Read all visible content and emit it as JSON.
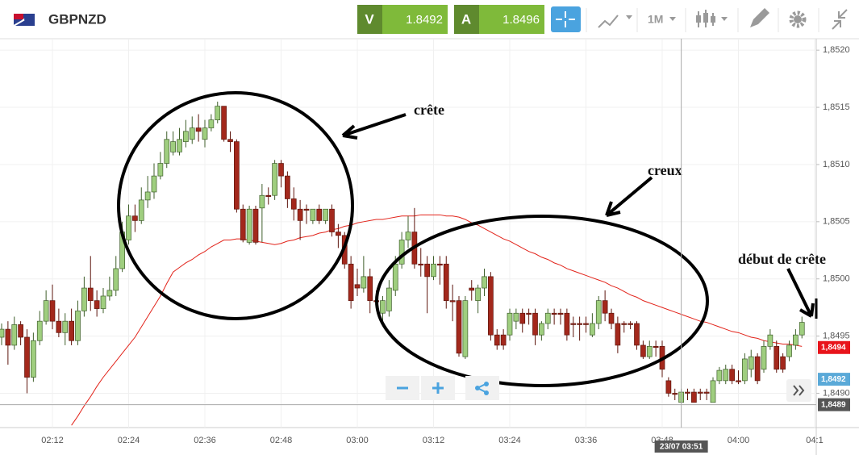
{
  "header": {
    "symbol": "GBPNZD",
    "bid": {
      "label": "V",
      "value": 1.8492
    },
    "ask": {
      "label": "A",
      "value": 1.8496
    },
    "timeframe": "1M"
  },
  "chart_data": {
    "type": "candlestick",
    "categories": [
      null,
      null,
      null,
      null,
      null,
      null,
      null,
      null,
      "02:12",
      null,
      null,
      null,
      null,
      null,
      null,
      null,
      null,
      null,
      null,
      null,
      "02:24",
      null,
      null,
      null,
      null,
      null,
      null,
      null,
      null,
      null,
      null,
      null,
      "02:36",
      null,
      null,
      null,
      null,
      null,
      null,
      null,
      null,
      null,
      null,
      null,
      "02:48",
      null,
      null,
      null,
      null,
      null,
      null,
      null,
      null,
      null,
      null,
      null,
      "03:00",
      null,
      null,
      null,
      null,
      null,
      null,
      null,
      null,
      null,
      null,
      null,
      "03:12",
      null,
      null,
      null,
      null,
      null,
      null,
      null,
      null,
      null,
      null,
      null,
      "03:24",
      null,
      null,
      null,
      null,
      null,
      null,
      null,
      null,
      null,
      null,
      null,
      "03:36",
      null,
      null,
      null,
      null,
      null,
      null,
      null,
      null,
      null,
      null,
      null,
      "03:48",
      null,
      null,
      null,
      null,
      null,
      null,
      null,
      null,
      null,
      null,
      null,
      "04:00",
      null,
      null,
      null,
      null,
      null,
      null,
      null,
      null,
      null,
      null,
      null,
      "04:1"
    ],
    "open": [
      1.84949,
      1.84956,
      1.84942,
      1.8496,
      1.84949,
      1.84914,
      1.84946,
      1.84963,
      1.84981,
      1.84963,
      1.84953,
      1.84963,
      1.84946,
      1.84972,
      1.84992,
      1.84981,
      1.84974,
      1.84985,
      1.8499,
      1.85009,
      1.85034,
      1.85055,
      1.85051,
      1.85069,
      1.85076,
      1.8509,
      1.85101,
      1.85111,
      1.85111,
      1.8512,
      1.85122,
      1.85132,
      1.85122,
      1.85132,
      1.85139,
      1.85151,
      1.85122,
      1.8512,
      1.85061,
      1.85032,
      1.85061,
      1.85062,
      1.85073,
      1.85073,
      1.85101,
      1.8509,
      1.8507,
      1.85061,
      1.85061,
      1.85051,
      1.85061,
      1.85051,
      1.85061,
      1.85041,
      1.85038,
      1.85013,
      1.84995,
      1.84992,
      1.85002,
      1.84981,
      1.8497,
      1.84972,
      1.8499,
      1.85013,
      1.85034,
      1.85041,
      1.85013,
      1.85013,
      1.85002,
      1.85013,
      1.85013,
      1.84981,
      1.84981,
      1.84932,
      1.84992,
      1.84981,
      1.84992,
      1.85002,
      1.84951,
      1.84951,
      1.84951,
      1.84963,
      1.8497,
      1.8497,
      1.8497,
      1.84951,
      1.84961,
      1.8497,
      1.8497,
      1.8497,
      1.84961,
      1.84961,
      1.84961,
      1.84951,
      1.84961,
      1.84981,
      1.8497,
      1.84961,
      1.84961,
      1.84961,
      1.84961,
      1.84942,
      1.84932,
      1.84941,
      1.84941,
      1.84911,
      1.849,
      1.84892,
      1.84901,
      1.84901,
      1.84901,
      1.84901,
      1.84892,
      1.84911,
      1.84911,
      1.84921,
      1.84911,
      1.84911,
      1.84921,
      1.84932,
      1.84921,
      1.84941,
      1.84941,
      1.84932,
      1.84932,
      1.84942,
      1.84951,
      null,
      null
    ],
    "high": [
      1.84961,
      1.84963,
      1.84967,
      1.84963,
      1.84956,
      1.84953,
      1.84972,
      1.8499,
      1.84995,
      1.84974,
      1.8497,
      1.84974,
      1.84981,
      1.85002,
      1.8502,
      1.8499,
      1.84992,
      1.85002,
      1.8502,
      1.8505,
      1.85065,
      1.85065,
      1.8508,
      1.8509,
      1.85101,
      1.85111,
      1.85129,
      1.85129,
      1.85132,
      1.85139,
      1.85142,
      1.85144,
      1.85139,
      1.85144,
      1.85155,
      1.85151,
      1.85129,
      1.85122,
      1.85065,
      1.85064,
      1.85064,
      1.85083,
      1.8508,
      1.85104,
      1.85104,
      1.85094,
      1.8508,
      1.85069,
      1.85065,
      1.85061,
      1.85065,
      1.85061,
      1.85065,
      1.85048,
      1.85041,
      1.8502,
      1.85009,
      1.8502,
      1.85009,
      1.8499,
      1.84985,
      1.84999,
      1.8502,
      1.85041,
      1.85055,
      1.85062,
      1.85027,
      1.8502,
      1.8502,
      1.8502,
      1.8502,
      1.84995,
      1.84985,
      1.84985,
      1.84999,
      1.84995,
      1.85009,
      1.85006,
      1.84956,
      1.84956,
      1.84974,
      1.84974,
      1.84974,
      1.84974,
      1.84974,
      1.84963,
      1.84974,
      1.84974,
      1.84974,
      1.84974,
      1.84967,
      1.84967,
      1.84967,
      1.8497,
      1.84985,
      1.8499,
      1.84974,
      1.84967,
      1.84963,
      1.84963,
      1.84963,
      1.84946,
      1.84946,
      1.84946,
      1.84946,
      1.84914,
      1.84904,
      1.84904,
      1.84904,
      1.84904,
      1.84904,
      1.84904,
      1.84914,
      1.84923,
      1.84925,
      1.84925,
      1.8492,
      1.84935,
      1.84938,
      1.84935,
      1.84946,
      1.84956,
      1.84946,
      1.84935,
      1.84946,
      1.84956,
      1.84967,
      null,
      null
    ],
    "low": [
      1.84942,
      1.84925,
      1.84938,
      1.84942,
      1.849,
      1.8491,
      1.84942,
      1.8496,
      1.84956,
      1.84949,
      1.84942,
      1.84942,
      1.84942,
      1.84967,
      1.84972,
      1.84967,
      1.8497,
      1.84981,
      1.84985,
      1.85006,
      1.8503,
      1.85041,
      1.85048,
      1.85062,
      1.8507,
      1.85087,
      1.85097,
      1.85108,
      1.85108,
      1.85115,
      1.85118,
      1.8512,
      1.85115,
      1.85129,
      1.85136,
      1.8512,
      1.85111,
      1.85058,
      1.85032,
      1.8503,
      1.8503,
      1.85032,
      1.85065,
      1.85069,
      1.8508,
      1.85062,
      1.85051,
      1.85034,
      1.85048,
      1.85048,
      1.85048,
      1.85048,
      1.85037,
      1.85027,
      1.85009,
      1.84974,
      1.84985,
      1.84988,
      1.8497,
      1.84974,
      1.84963,
      1.84967,
      1.84985,
      1.85009,
      1.85027,
      1.85009,
      1.85002,
      1.8497,
      1.84999,
      1.84995,
      1.84974,
      1.84963,
      1.84932,
      1.8493,
      1.84981,
      1.8497,
      1.84985,
      1.84946,
      1.84938,
      1.84938,
      1.84946,
      1.84956,
      1.84953,
      1.8496,
      1.84942,
      1.84946,
      1.84956,
      1.8496,
      1.8496,
      1.84946,
      1.84949,
      1.84946,
      1.84953,
      1.84949,
      1.84956,
      1.84963,
      1.84956,
      1.84935,
      1.84953,
      1.84956,
      1.84938,
      1.8493,
      1.8493,
      1.84932,
      1.84914,
      1.84897,
      1.84894,
      1.84892,
      1.84894,
      1.84892,
      1.84894,
      1.84894,
      1.84892,
      1.84908,
      1.84908,
      1.84908,
      1.84908,
      1.84908,
      1.84914,
      1.84908,
      1.84918,
      1.84938,
      1.84918,
      1.84918,
      1.84928,
      1.84938,
      1.84948,
      null,
      null
    ],
    "close": [
      1.84956,
      1.84942,
      1.8496,
      1.84949,
      1.84914,
      1.84946,
      1.84963,
      1.84981,
      1.84963,
      1.84953,
      1.84963,
      1.84946,
      1.84972,
      1.84992,
      1.84981,
      1.84974,
      1.84985,
      1.8499,
      1.85009,
      1.85041,
      1.85055,
      1.85051,
      1.85069,
      1.85076,
      1.8509,
      1.85101,
      1.85122,
      1.8512,
      1.85122,
      1.85129,
      1.85132,
      1.85129,
      1.85132,
      1.85139,
      1.85151,
      1.85122,
      1.8512,
      1.85061,
      1.85034,
      1.85061,
      1.85032,
      1.85073,
      1.85072,
      1.85101,
      1.8509,
      1.8507,
      1.85061,
      1.85051,
      1.8506,
      1.85061,
      1.85051,
      1.85061,
      1.85041,
      1.85038,
      1.85013,
      1.84981,
      1.84992,
      1.85002,
      1.84981,
      1.8498,
      1.84981,
      1.84992,
      1.85013,
      1.85034,
      1.85041,
      1.85013,
      1.85012,
      1.85002,
      1.85013,
      1.85012,
      1.84981,
      1.8498,
      1.84935,
      1.84981,
      1.8499,
      1.84992,
      1.85002,
      1.84951,
      1.84942,
      1.84942,
      1.8497,
      1.8497,
      1.84961,
      1.84969,
      1.84951,
      1.84961,
      1.8497,
      1.84969,
      1.84969,
      1.84951,
      1.8496,
      1.8496,
      1.8496,
      1.84961,
      1.84981,
      1.8497,
      1.84961,
      1.84942,
      1.8496,
      1.8496,
      1.84942,
      1.84932,
      1.84941,
      1.8494,
      1.84921,
      1.849,
      1.84899,
      1.84901,
      1.849,
      1.84892,
      1.849,
      1.849,
      1.84911,
      1.8492,
      1.84921,
      1.84911,
      1.8491,
      1.8493,
      1.84932,
      1.84911,
      1.84941,
      1.84951,
      1.84921,
      1.84921,
      1.84942,
      1.84951,
      1.84962,
      null,
      null
    ],
    "up_color": "#9fce7f",
    "down_color": "#a3281c",
    "overlays": [
      {
        "type": "line",
        "color": "#e2231a",
        "values": [
          null,
          null,
          null,
          null,
          null,
          null,
          null,
          null,
          null,
          null,
          null,
          1.84872,
          1.8488,
          1.84889,
          1.84897,
          1.84906,
          1.84914,
          1.84921,
          1.84928,
          1.84935,
          1.84942,
          1.84949,
          1.84958,
          1.84967,
          1.84976,
          1.84985,
          1.84996,
          1.85006,
          1.8501,
          1.85014,
          1.85017,
          1.85021,
          1.85024,
          1.85028,
          1.85031,
          1.85034,
          1.85034,
          1.85035,
          1.85035,
          1.85034,
          1.85033,
          1.85032,
          1.85031,
          1.8503,
          1.85031,
          1.85033,
          1.85034,
          1.85036,
          1.85037,
          1.85038,
          1.8504,
          1.85041,
          1.85043,
          1.85044,
          1.85046,
          1.85047,
          1.85049,
          1.8505,
          1.85051,
          1.85052,
          1.85052,
          1.85053,
          1.85054,
          1.85055,
          1.85055,
          1.85055,
          1.85056,
          1.85056,
          1.85056,
          1.85056,
          1.85055,
          1.85055,
          1.85054,
          1.85052,
          1.85049,
          1.85047,
          1.85044,
          1.85041,
          1.85038,
          1.85035,
          1.85033,
          1.8503,
          1.85027,
          1.85024,
          1.85022,
          1.85019,
          1.85017,
          1.85014,
          1.85012,
          1.85009,
          1.85007,
          1.85005,
          1.85003,
          1.85001,
          1.84999,
          1.84997,
          1.84994,
          1.84992,
          1.84989,
          1.84986,
          1.84984,
          1.84981,
          1.84979,
          1.84977,
          1.84975,
          1.84973,
          1.84971,
          1.84969,
          1.84967,
          1.84965,
          1.84963,
          1.84962,
          1.8496,
          1.84958,
          1.84956,
          1.84954,
          1.84953,
          1.84951,
          1.84949,
          1.84948,
          1.84946,
          1.84945,
          1.84944,
          1.84943,
          1.84943,
          1.84942,
          1.84941,
          null,
          null
        ]
      }
    ],
    "ylim": [
      1.8487,
      1.8521
    ],
    "yticks": [
      {
        "value": 1.849,
        "label": "1,8490"
      },
      {
        "value": 1.8495,
        "label": "1,8495"
      },
      {
        "value": 1.85,
        "label": "1,8500"
      },
      {
        "value": 1.8505,
        "label": "1,8505"
      },
      {
        "value": 1.851,
        "label": "1,8510"
      },
      {
        "value": 1.8515,
        "label": "1,8515"
      },
      {
        "value": 1.852,
        "label": "1,8520"
      }
    ],
    "grid": true,
    "price_tags": [
      {
        "value": 1.8494,
        "label": "1,8494",
        "color": "#e8141b"
      },
      {
        "value": 1.8492,
        "label": "1,8492",
        "color": "#5aa9d8"
      }
    ],
    "crosshair": {
      "x_label": "23/07 03:51",
      "y": {
        "value": 1.8489,
        "label": "1,8489"
      }
    },
    "annotations": [
      {
        "text": "crête"
      },
      {
        "text": "creux"
      },
      {
        "text": "début de crête"
      }
    ]
  }
}
